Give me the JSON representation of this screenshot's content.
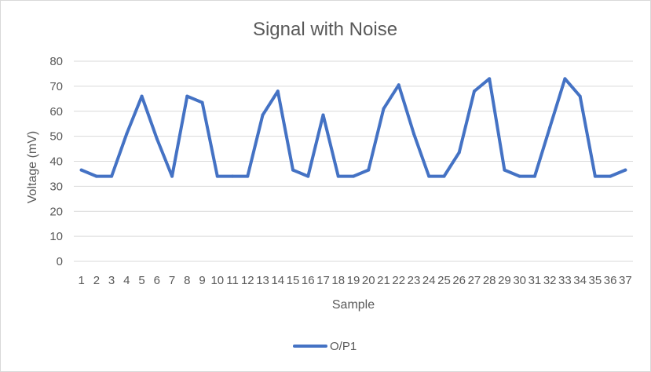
{
  "chart_data": {
    "type": "line",
    "title": "Signal with Noise",
    "xlabel": "Sample",
    "ylabel": "Voltage (mV)",
    "ylim": [
      0,
      80
    ],
    "yticks": [
      0,
      10,
      20,
      30,
      40,
      50,
      60,
      70,
      80
    ],
    "grid": true,
    "legend_position": "bottom",
    "categories": [
      "1",
      "2",
      "3",
      "4",
      "5",
      "6",
      "7",
      "8",
      "9",
      "10",
      "11",
      "12",
      "13",
      "14",
      "15",
      "16",
      "17",
      "18",
      "19",
      "20",
      "21",
      "22",
      "23",
      "24",
      "25",
      "26",
      "27",
      "28",
      "29",
      "30",
      "31",
      "32",
      "33",
      "34",
      "35",
      "36",
      "37"
    ],
    "series": [
      {
        "name": "O/P1",
        "color": "#4472c4",
        "values": [
          36.5,
          34,
          34,
          51,
          66,
          49,
          34,
          66,
          63.5,
          34,
          34,
          34,
          58.5,
          68,
          36.5,
          34,
          58.5,
          34,
          34,
          36.5,
          61,
          70.5,
          51,
          34,
          34,
          43.5,
          68,
          73,
          36.5,
          34,
          34,
          53.5,
          73,
          66,
          34,
          34,
          36.5
        ]
      }
    ]
  }
}
